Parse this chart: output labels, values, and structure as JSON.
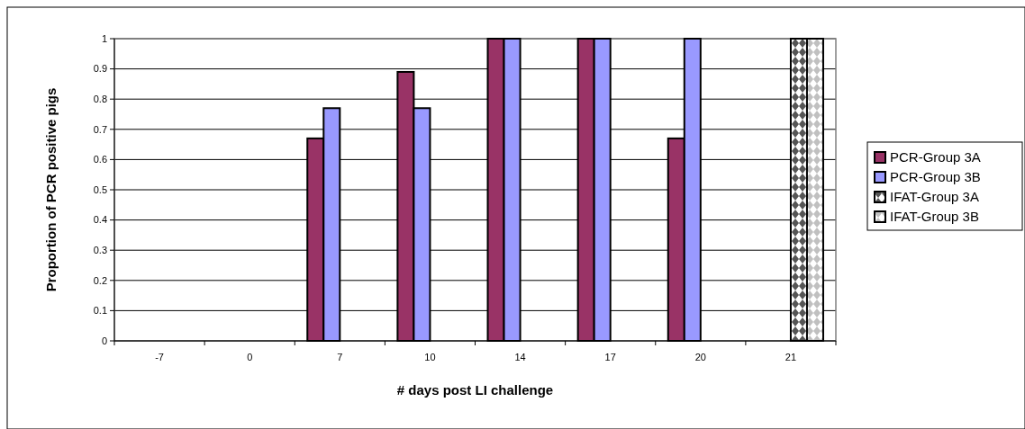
{
  "chart_data": {
    "type": "bar",
    "xlabel": "# days post LI challenge",
    "ylabel": "Proportion of PCR positive pigs",
    "categories": [
      "-7",
      "0",
      "7",
      "10",
      "14",
      "17",
      "20",
      "21"
    ],
    "series": [
      {
        "name": "PCR-Group 3A",
        "color": "#993366",
        "values": [
          null,
          null,
          0.67,
          0.89,
          1,
          1,
          0.67,
          null
        ]
      },
      {
        "name": "PCR-Group 3B",
        "color": "#9999ff",
        "values": [
          null,
          null,
          0.77,
          0.77,
          1,
          1,
          1,
          null
        ]
      },
      {
        "name": "IFAT-Group 3A",
        "color": "#555555",
        "values": [
          null,
          null,
          null,
          null,
          null,
          null,
          null,
          1
        ]
      },
      {
        "name": "IFAT-Group 3B",
        "color": "#c0c0c0",
        "values": [
          null,
          null,
          null,
          null,
          null,
          null,
          null,
          1
        ]
      }
    ],
    "ylim": [
      0,
      1
    ],
    "yticks": [
      0,
      0.1,
      0.2,
      0.3,
      0.4,
      0.5,
      0.6,
      0.7,
      0.8,
      0.9,
      1
    ],
    "grid": "y",
    "legend": "right"
  }
}
